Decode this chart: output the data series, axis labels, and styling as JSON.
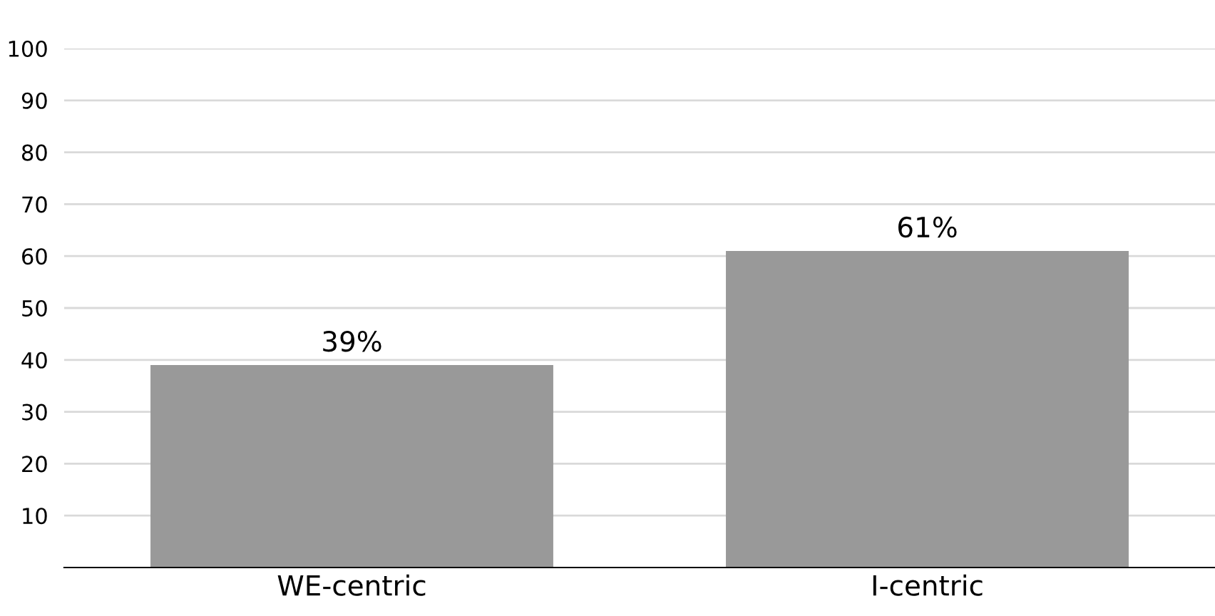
{
  "chart_data": {
    "type": "bar",
    "categories": [
      "WE-centric",
      "I-centric"
    ],
    "values": [
      39,
      61
    ],
    "value_labels": [
      "39%",
      "61%"
    ],
    "color": "#999999",
    "ylim": [
      0,
      100
    ],
    "yticks": [
      10,
      20,
      30,
      40,
      50,
      60,
      70,
      80,
      90,
      100
    ],
    "grid": "y",
    "legend": false
  }
}
